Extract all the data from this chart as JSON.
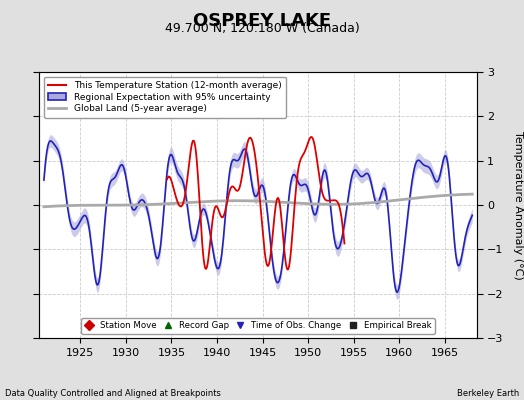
{
  "title": "OSPREY LAKE",
  "subtitle": "49.700 N, 120.180 W (Canada)",
  "ylabel": "Temperature Anomaly (°C)",
  "xlabel_note": "Data Quality Controlled and Aligned at Breakpoints",
  "credit": "Berkeley Earth",
  "xlim": [
    1920.5,
    1968.5
  ],
  "ylim": [
    -3,
    3
  ],
  "yticks": [
    -3,
    -2,
    -1,
    0,
    1,
    2,
    3
  ],
  "xticks": [
    1925,
    1930,
    1935,
    1940,
    1945,
    1950,
    1955,
    1960,
    1965
  ],
  "bg_color": "#e0e0e0",
  "plot_bg_color": "#ffffff",
  "grid_color": "#cccccc",
  "title_fontsize": 13,
  "subtitle_fontsize": 9,
  "red_color": "#dd0000",
  "blue_color": "#2222bb",
  "blue_fill": "#aaaadd",
  "gray_color": "#aaaaaa",
  "legend_labels": [
    "This Temperature Station (12-month average)",
    "Regional Expectation with 95% uncertainty",
    "Global Land (5-year average)"
  ],
  "marker_legend": [
    {
      "label": "Station Move",
      "marker": "D",
      "color": "#cc0000"
    },
    {
      "label": "Record Gap",
      "marker": "^",
      "color": "#006600"
    },
    {
      "label": "Time of Obs. Change",
      "marker": "v",
      "color": "#2222bb"
    },
    {
      "label": "Empirical Break",
      "marker": "s",
      "color": "#222222"
    }
  ],
  "station_start": 1934.5,
  "station_end": 1954.0
}
